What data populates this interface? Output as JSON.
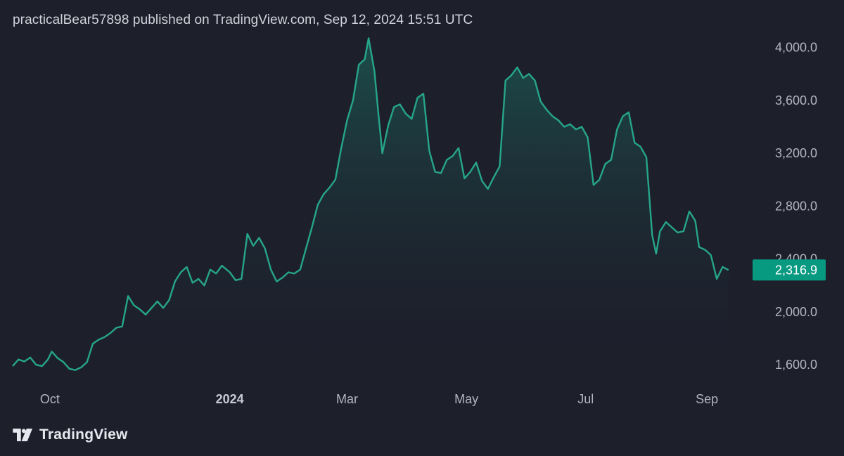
{
  "header": {
    "text": "practicalBear57898 published on TradingView.com, Sep 12, 2024 15:51 UTC"
  },
  "brand": {
    "name": "TradingView",
    "logo_icon": "tradingview-logo-icon"
  },
  "colors": {
    "background": "#1d1f2b",
    "line": "#26a58a",
    "price_badge": "#089981"
  },
  "chart_data": {
    "type": "area",
    "y_ticks": [
      "1,600.0",
      "2,000.0",
      "2,400.0",
      "2,800.0",
      "3,200.0",
      "3,600.0",
      "4,000.0"
    ],
    "y_tick_values": [
      1600,
      2000,
      2400,
      2800,
      3200,
      3600,
      4000
    ],
    "ylim": [
      1500,
      4120
    ],
    "x_ticks": [
      {
        "label": "Oct",
        "date": "2023-10-01",
        "bold": false
      },
      {
        "label": "2024",
        "date": "2024-01-01",
        "bold": true
      },
      {
        "label": "Mar",
        "date": "2024-03-01",
        "bold": false
      },
      {
        "label": "May",
        "date": "2024-05-01",
        "bold": false
      },
      {
        "label": "Jul",
        "date": "2024-07-01",
        "bold": false
      },
      {
        "label": "Sep",
        "date": "2024-09-01",
        "bold": false
      }
    ],
    "xlim": [
      "2023-09-12",
      "2024-09-20"
    ],
    "last_price": "2,316.9",
    "last_value": 2316.9,
    "series": [
      {
        "points": [
          [
            "2023-09-12",
            1590
          ],
          [
            "2023-09-15",
            1640
          ],
          [
            "2023-09-18",
            1625
          ],
          [
            "2023-09-21",
            1655
          ],
          [
            "2023-09-24",
            1600
          ],
          [
            "2023-09-27",
            1590
          ],
          [
            "2023-09-30",
            1640
          ],
          [
            "2023-10-02",
            1700
          ],
          [
            "2023-10-05",
            1650
          ],
          [
            "2023-10-08",
            1620
          ],
          [
            "2023-10-11",
            1570
          ],
          [
            "2023-10-14",
            1560
          ],
          [
            "2023-10-17",
            1580
          ],
          [
            "2023-10-20",
            1620
          ],
          [
            "2023-10-23",
            1760
          ],
          [
            "2023-10-26",
            1790
          ],
          [
            "2023-10-29",
            1810
          ],
          [
            "2023-11-01",
            1840
          ],
          [
            "2023-11-04",
            1880
          ],
          [
            "2023-11-07",
            1890
          ],
          [
            "2023-11-10",
            2120
          ],
          [
            "2023-11-13",
            2050
          ],
          [
            "2023-11-16",
            2020
          ],
          [
            "2023-11-19",
            1980
          ],
          [
            "2023-11-22",
            2030
          ],
          [
            "2023-11-25",
            2080
          ],
          [
            "2023-11-28",
            2030
          ],
          [
            "2023-12-01",
            2090
          ],
          [
            "2023-12-04",
            2230
          ],
          [
            "2023-12-07",
            2300
          ],
          [
            "2023-12-10",
            2340
          ],
          [
            "2023-12-13",
            2220
          ],
          [
            "2023-12-16",
            2250
          ],
          [
            "2023-12-19",
            2200
          ],
          [
            "2023-12-22",
            2320
          ],
          [
            "2023-12-25",
            2290
          ],
          [
            "2023-12-28",
            2350
          ],
          [
            "2024-01-01",
            2300
          ],
          [
            "2024-01-04",
            2240
          ],
          [
            "2024-01-07",
            2250
          ],
          [
            "2024-01-10",
            2590
          ],
          [
            "2024-01-13",
            2500
          ],
          [
            "2024-01-16",
            2560
          ],
          [
            "2024-01-19",
            2480
          ],
          [
            "2024-01-22",
            2320
          ],
          [
            "2024-01-25",
            2230
          ],
          [
            "2024-01-28",
            2260
          ],
          [
            "2024-01-31",
            2300
          ],
          [
            "2024-02-03",
            2290
          ],
          [
            "2024-02-06",
            2320
          ],
          [
            "2024-02-09",
            2480
          ],
          [
            "2024-02-12",
            2640
          ],
          [
            "2024-02-15",
            2810
          ],
          [
            "2024-02-18",
            2890
          ],
          [
            "2024-02-21",
            2940
          ],
          [
            "2024-02-24",
            3000
          ],
          [
            "2024-02-27",
            3240
          ],
          [
            "2024-03-01",
            3450
          ],
          [
            "2024-03-04",
            3600
          ],
          [
            "2024-03-07",
            3870
          ],
          [
            "2024-03-10",
            3910
          ],
          [
            "2024-03-12",
            4070
          ],
          [
            "2024-03-15",
            3820
          ],
          [
            "2024-03-17",
            3500
          ],
          [
            "2024-03-19",
            3200
          ],
          [
            "2024-03-22",
            3410
          ],
          [
            "2024-03-25",
            3550
          ],
          [
            "2024-03-28",
            3570
          ],
          [
            "2024-03-31",
            3500
          ],
          [
            "2024-04-03",
            3460
          ],
          [
            "2024-04-06",
            3620
          ],
          [
            "2024-04-09",
            3650
          ],
          [
            "2024-04-12",
            3220
          ],
          [
            "2024-04-15",
            3060
          ],
          [
            "2024-04-18",
            3050
          ],
          [
            "2024-04-21",
            3150
          ],
          [
            "2024-04-24",
            3180
          ],
          [
            "2024-04-27",
            3240
          ],
          [
            "2024-04-30",
            3010
          ],
          [
            "2024-05-03",
            3060
          ],
          [
            "2024-05-06",
            3130
          ],
          [
            "2024-05-09",
            2990
          ],
          [
            "2024-05-12",
            2930
          ],
          [
            "2024-05-15",
            3020
          ],
          [
            "2024-05-18",
            3100
          ],
          [
            "2024-05-21",
            3750
          ],
          [
            "2024-05-24",
            3790
          ],
          [
            "2024-05-27",
            3850
          ],
          [
            "2024-05-30",
            3770
          ],
          [
            "2024-06-02",
            3800
          ],
          [
            "2024-06-05",
            3750
          ],
          [
            "2024-06-08",
            3590
          ],
          [
            "2024-06-11",
            3530
          ],
          [
            "2024-06-14",
            3480
          ],
          [
            "2024-06-17",
            3450
          ],
          [
            "2024-06-20",
            3400
          ],
          [
            "2024-06-23",
            3420
          ],
          [
            "2024-06-26",
            3380
          ],
          [
            "2024-06-29",
            3400
          ],
          [
            "2024-07-02",
            3320
          ],
          [
            "2024-07-05",
            2960
          ],
          [
            "2024-07-08",
            3000
          ],
          [
            "2024-07-11",
            3120
          ],
          [
            "2024-07-14",
            3150
          ],
          [
            "2024-07-17",
            3380
          ],
          [
            "2024-07-20",
            3480
          ],
          [
            "2024-07-23",
            3510
          ],
          [
            "2024-07-26",
            3280
          ],
          [
            "2024-07-29",
            3250
          ],
          [
            "2024-08-01",
            3170
          ],
          [
            "2024-08-04",
            2580
          ],
          [
            "2024-08-06",
            2440
          ],
          [
            "2024-08-08",
            2610
          ],
          [
            "2024-08-11",
            2680
          ],
          [
            "2024-08-14",
            2640
          ],
          [
            "2024-08-17",
            2600
          ],
          [
            "2024-08-20",
            2610
          ],
          [
            "2024-08-23",
            2760
          ],
          [
            "2024-08-26",
            2690
          ],
          [
            "2024-08-28",
            2490
          ],
          [
            "2024-08-31",
            2470
          ],
          [
            "2024-09-03",
            2430
          ],
          [
            "2024-09-06",
            2250
          ],
          [
            "2024-09-09",
            2340
          ],
          [
            "2024-09-12",
            2316.9
          ]
        ]
      }
    ]
  }
}
